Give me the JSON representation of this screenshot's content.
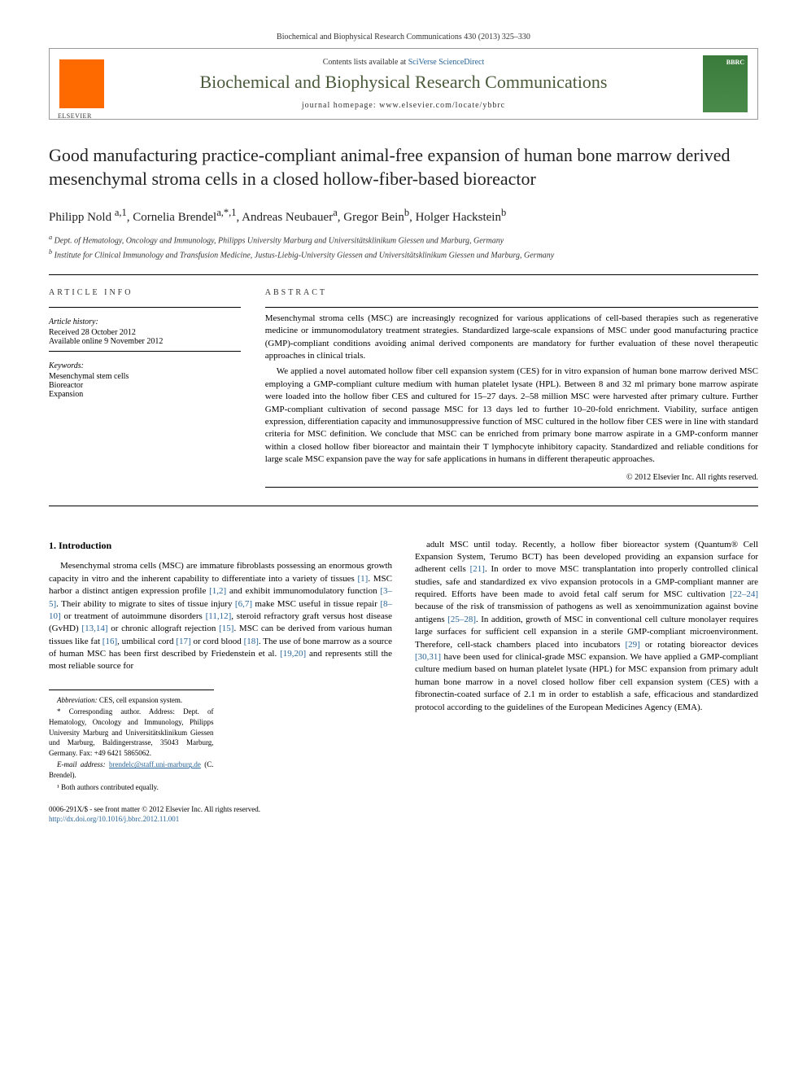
{
  "journal_ref": "Biochemical and Biophysical Research Communications 430 (2013) 325–330",
  "header": {
    "contents_prefix": "Contents lists available at ",
    "contents_link": "SciVerse ScienceDirect",
    "journal_name": "Biochemical and Biophysical Research Communications",
    "homepage_prefix": "journal homepage: ",
    "homepage_url": "www.elsevier.com/locate/ybbrc"
  },
  "title": "Good manufacturing practice-compliant animal-free expansion of human bone marrow derived mesenchymal stroma cells in a closed hollow-fiber-based bioreactor",
  "authors_html": "Philipp Nold <sup>a,1</sup>, Cornelia Brendel<sup>a,*,1</sup>, Andreas Neubauer<sup>a</sup>, Gregor Bein<sup>b</sup>, Holger Hackstein<sup>b</sup>",
  "affiliations": {
    "a": "Dept. of Hematology, Oncology and Immunology, Philipps University Marburg and Universitätsklinikum Giessen und Marburg, Germany",
    "b": "Institute for Clinical Immunology and Transfusion Medicine, Justus-Liebig-University Giessen and Universitätsklinikum Giessen und Marburg, Germany"
  },
  "article_info": {
    "header": "ARTICLE INFO",
    "history_label": "Article history:",
    "received": "Received 28 October 2012",
    "available": "Available online 9 November 2012",
    "keywords_label": "Keywords:",
    "keywords": [
      "Mesenchymal stem cells",
      "Bioreactor",
      "Expansion"
    ]
  },
  "abstract": {
    "header": "ABSTRACT",
    "para1": "Mesenchymal stroma cells (MSC) are increasingly recognized for various applications of cell-based therapies such as regenerative medicine or immunomodulatory treatment strategies. Standardized large-scale expansions of MSC under good manufacturing practice (GMP)-compliant conditions avoiding animal derived components are mandatory for further evaluation of these novel therapeutic approaches in clinical trials.",
    "para2": "We applied a novel automated hollow fiber cell expansion system (CES) for in vitro expansion of human bone marrow derived MSC employing a GMP-compliant culture medium with human platelet lysate (HPL). Between 8 and 32 ml primary bone marrow aspirate were loaded into the hollow fiber CES and cultured for 15–27 days. 2–58 million MSC were harvested after primary culture. Further GMP-compliant cultivation of second passage MSC for 13 days led to further 10–20-fold enrichment. Viability, surface antigen expression, differentiation capacity and immunosuppressive function of MSC cultured in the hollow fiber CES were in line with standard criteria for MSC definition. We conclude that MSC can be enriched from primary bone marrow aspirate in a GMP-conform manner within a closed hollow fiber bioreactor and maintain their T lymphocyte inhibitory capacity. Standardized and reliable conditions for large scale MSC expansion pave the way for safe applications in humans in different therapeutic approaches.",
    "copyright": "© 2012 Elsevier Inc. All rights reserved."
  },
  "section1": {
    "heading": "1. Introduction",
    "left_para": "Mesenchymal stroma cells (MSC) are immature fibroblasts possessing an enormous growth capacity in vitro and the inherent capability to differentiate into a variety of tissues [1]. MSC harbor a distinct antigen expression profile [1,2] and exhibit immunomodulatory function [3–5]. Their ability to migrate to sites of tissue injury [6,7] make MSC useful in tissue repair [8–10] or treatment of autoimmune disorders [11,12], steroid refractory graft versus host disease (GvHD) [13,14] or chronic allograft rejection [15]. MSC can be derived from various human tissues like fat [16], umbilical cord [17] or cord blood [18]. The use of bone marrow as a source of human MSC has been first described by Friedenstein et al. [19,20] and represents still the most reliable source for",
    "right_para": "adult MSC until today. Recently, a hollow fiber bioreactor system (Quantum® Cell Expansion System, Terumo BCT) has been developed providing an expansion surface for adherent cells [21]. In order to move MSC transplantation into properly controlled clinical studies, safe and standardized ex vivo expansion protocols in a GMP-compliant manner are required. Efforts have been made to avoid fetal calf serum for MSC cultivation [22–24] because of the risk of transmission of pathogens as well as xenoimmunization against bovine antigens [25–28]. In addition, growth of MSC in conventional cell culture monolayer requires large surfaces for sufficient cell expansion in a sterile GMP-compliant microenvironment. Therefore, cell-stack chambers placed into incubators [29] or rotating bioreactor devices [30,31] have been used for clinical-grade MSC expansion. We have applied a GMP-compliant culture medium based on human platelet lysate (HPL) for MSC expansion from primary adult human bone marrow in a novel closed hollow fiber cell expansion system (CES) with a fibronectin-coated surface of 2.1 m in order to establish a safe, efficacious and standardized protocol according to the guidelines of the European Medicines Agency (EMA)."
  },
  "footnotes": {
    "abbrev_label": "Abbreviation:",
    "abbrev": " CES, cell expansion system.",
    "corr_label": "* Corresponding author.",
    "corr_text": " Address: Dept. of Hematology, Oncology and Immunology, Philipps University Marburg and Universitätsklinikum Giessen und Marburg, Baldingerstrasse, 35043 Marburg, Germany. Fax: +49 6421 5865062.",
    "email_label": "E-mail address: ",
    "email": "brendelc@staff.uni-marburg.de",
    "email_suffix": " (C. Brendel).",
    "equal": "¹ Both authors contributed equally."
  },
  "footer": {
    "line1": "0006-291X/$ - see front matter © 2012 Elsevier Inc. All rights reserved.",
    "doi_url": "http://dx.doi.org/10.1016/j.bbrc.2012.11.001"
  },
  "colors": {
    "link": "#2a6496",
    "journal_green": "#4a5a3a",
    "elsevier_orange": "#ff6a00",
    "cover_green": "#3a7a3a",
    "border": "#999999"
  }
}
